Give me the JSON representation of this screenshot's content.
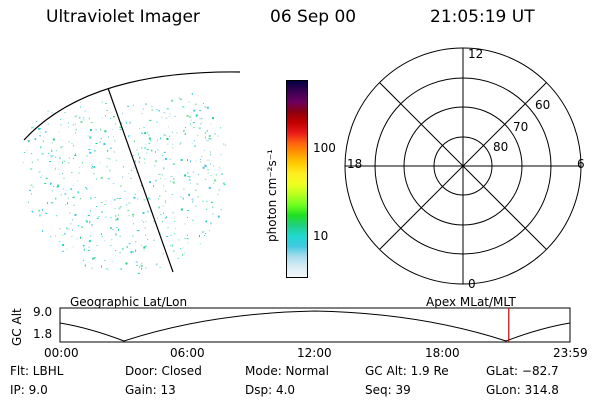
{
  "header": {
    "instrument": "Ultraviolet Imager",
    "date": "06 Sep 00",
    "time": "21:05:19 UT"
  },
  "colorbar": {
    "label": "photon cm⁻²s⁻¹",
    "ticks": [
      "100",
      "10"
    ],
    "colors": [
      "#000040",
      "#3a0050",
      "#6a0060",
      "#8c0010",
      "#c00000",
      "#e81818",
      "#ff6010",
      "#ff9a00",
      "#ffcc00",
      "#ffee20",
      "#f0ff20",
      "#b8ff20",
      "#70ff20",
      "#20e020",
      "#20d080",
      "#20d8d0",
      "#40c8e0",
      "#a8dcec",
      "#d8ecf4",
      "#f4f8fb"
    ]
  },
  "polar": {
    "hour_labels": [
      "12",
      "18",
      "6",
      "0"
    ],
    "lat_labels": [
      "60",
      "70",
      "80"
    ]
  },
  "timeline": {
    "left_label": "Geographic Lat/Lon",
    "right_label": "Apex MLat/MLT",
    "axis_title": "GC Alt",
    "y_ticks": [
      "9.0",
      "1.8"
    ],
    "x_ticks": [
      "00:00",
      "06:00",
      "12:00",
      "18:00",
      "23:59"
    ],
    "current_time_fraction": 0.88
  },
  "status": {
    "filter": "Flt: LBHL",
    "ip": "IP:  9.0",
    "door": "Door: Closed",
    "gain": "Gain: 13",
    "mode": "Mode: Normal",
    "dsp": "Dsp:    4.0",
    "gc_alt": "GC Alt: 1.9 Re",
    "seq": "Seq: 39",
    "glat": "GLat: −82.7",
    "glon": "GLon: 314.8"
  }
}
